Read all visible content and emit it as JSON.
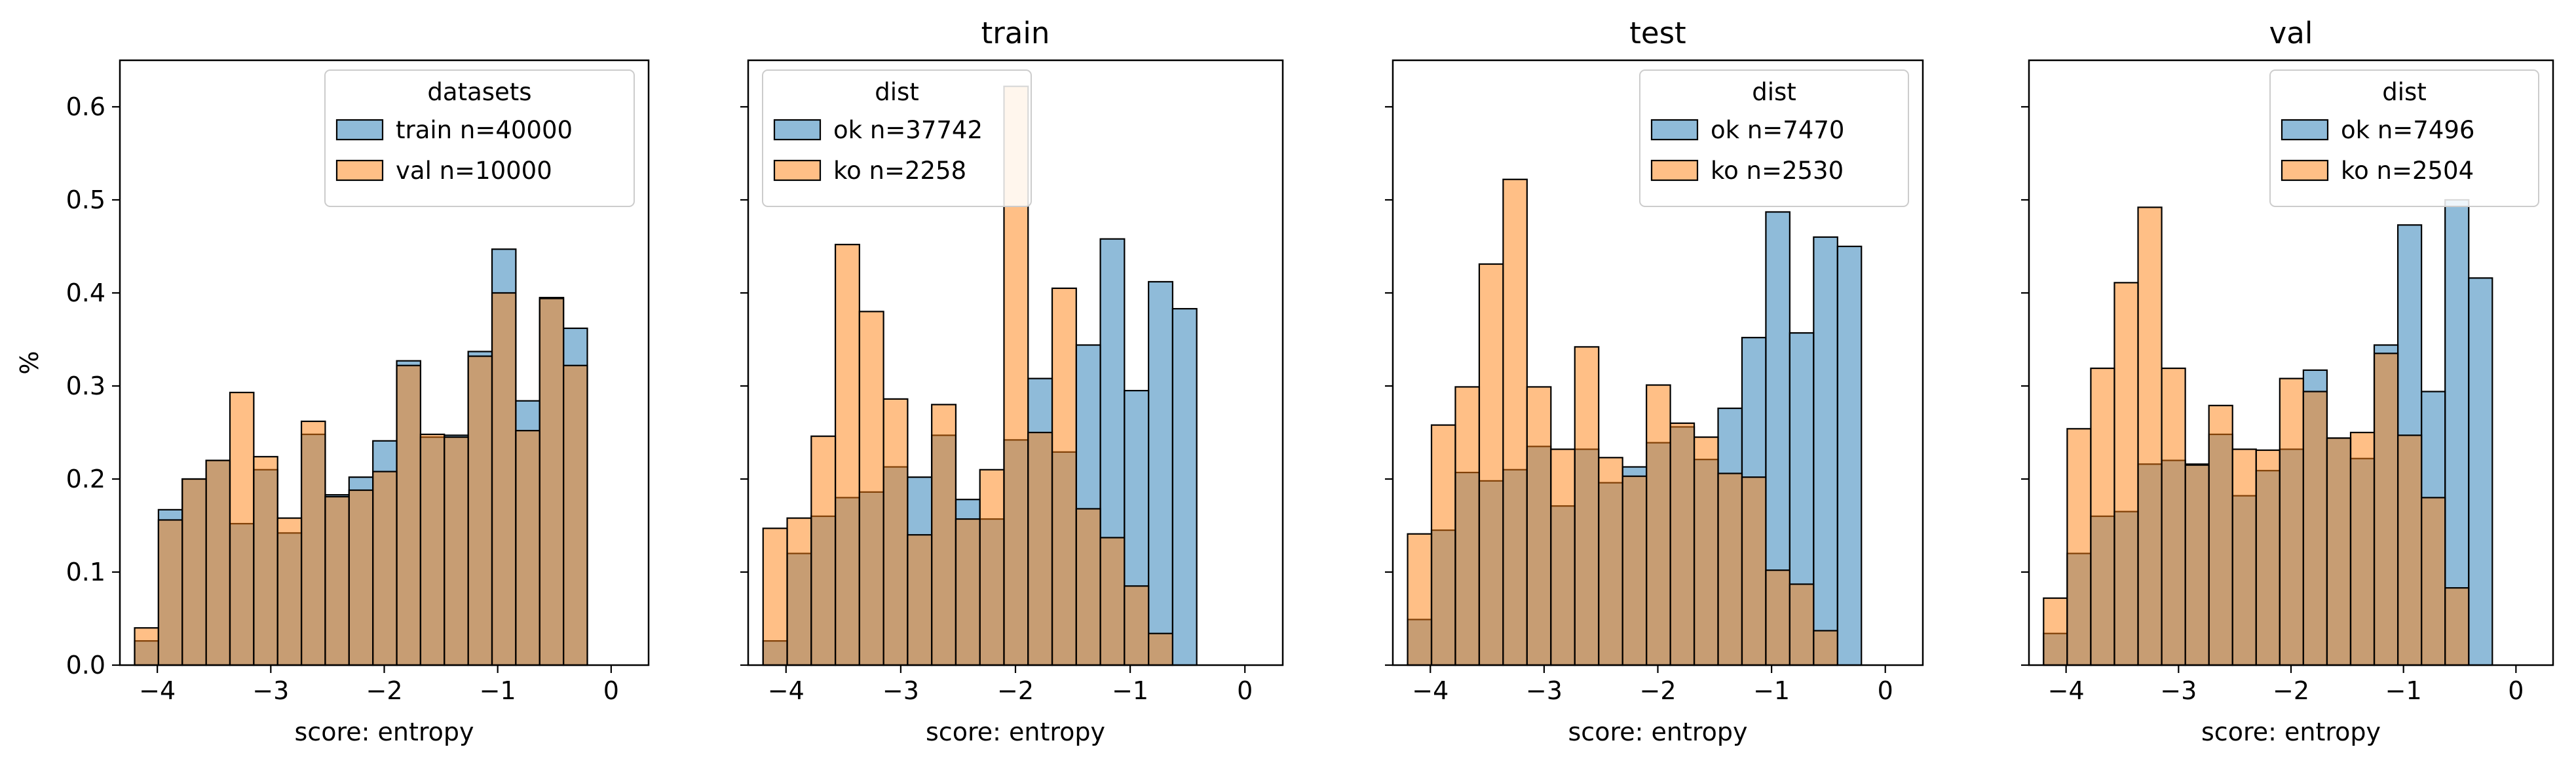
{
  "colors": {
    "blue": "#1f77b4",
    "orange": "#ff7f0e"
  },
  "chart_data": [
    {
      "type": "histogram",
      "title": "",
      "xlabel": "score: entropy",
      "ylabel": "%",
      "xlim": [
        -4.33,
        0.33
      ],
      "ylim": [
        0.0,
        0.65
      ],
      "xticks": [
        -4,
        -3,
        -2,
        -1,
        0
      ],
      "yticks": [
        "0.0",
        "0.1",
        "0.2",
        "0.3",
        "0.4",
        "0.5",
        "0.6"
      ],
      "legend_title": "datasets",
      "legend_position": "top-right",
      "series": [
        {
          "name": "train n=40000",
          "color": "blue",
          "bin_start": -4.2,
          "bin_width": 0.21,
          "values": [
            0.026,
            0.167,
            0.2,
            0.22,
            0.152,
            0.21,
            0.142,
            0.248,
            0.183,
            0.202,
            0.241,
            0.327,
            0.245,
            0.247,
            0.337,
            0.447,
            0.284,
            0.395,
            0.362
          ]
        },
        {
          "name": "val n=10000",
          "color": "orange",
          "bin_start": -4.2,
          "bin_width": 0.21,
          "values": [
            0.04,
            0.156,
            0.2,
            0.22,
            0.293,
            0.224,
            0.158,
            0.262,
            0.181,
            0.188,
            0.208,
            0.322,
            0.248,
            0.245,
            0.332,
            0.4,
            0.252,
            0.394,
            0.322
          ]
        }
      ]
    },
    {
      "type": "histogram",
      "title": "train",
      "xlabel": "score: entropy",
      "ylabel": "",
      "xlim": [
        -4.33,
        0.33
      ],
      "ylim": [
        0.0,
        0.65
      ],
      "xticks": [
        -4,
        -3,
        -2,
        -1,
        0
      ],
      "yticks": [],
      "legend_title": "dist",
      "legend_position": "top-left",
      "series": [
        {
          "name": "ok n=37742",
          "color": "blue",
          "bin_start": -4.2,
          "bin_width": 0.21,
          "values": [
            0.026,
            0.12,
            0.16,
            0.18,
            0.186,
            0.213,
            0.202,
            0.247,
            0.178,
            0.157,
            0.242,
            0.308,
            0.229,
            0.344,
            0.458,
            0.295,
            0.412,
            0.383,
            0.0
          ]
        },
        {
          "name": "ko n=2258",
          "color": "orange",
          "bin_start": -4.2,
          "bin_width": 0.21,
          "values": [
            0.147,
            0.158,
            0.246,
            0.452,
            0.38,
            0.286,
            0.14,
            0.28,
            0.157,
            0.21,
            0.622,
            0.25,
            0.405,
            0.168,
            0.137,
            0.085,
            0.034,
            0.0,
            0.0
          ]
        }
      ]
    },
    {
      "type": "histogram",
      "title": "test",
      "xlabel": "score: entropy",
      "ylabel": "",
      "xlim": [
        -4.33,
        0.33
      ],
      "ylim": [
        0.0,
        0.65
      ],
      "xticks": [
        -4,
        -3,
        -2,
        -1,
        0
      ],
      "yticks": [],
      "legend_title": "dist",
      "legend_position": "top-right",
      "series": [
        {
          "name": "ok n=7470",
          "color": "blue",
          "bin_start": -4.2,
          "bin_width": 0.21,
          "values": [
            0.049,
            0.145,
            0.207,
            0.198,
            0.21,
            0.235,
            0.171,
            0.232,
            0.196,
            0.213,
            0.239,
            0.256,
            0.221,
            0.276,
            0.352,
            0.487,
            0.357,
            0.46,
            0.45
          ]
        },
        {
          "name": "ko n=2530",
          "color": "orange",
          "bin_start": -4.2,
          "bin_width": 0.21,
          "values": [
            0.141,
            0.258,
            0.299,
            0.431,
            0.522,
            0.299,
            0.232,
            0.342,
            0.223,
            0.203,
            0.301,
            0.26,
            0.245,
            0.206,
            0.202,
            0.102,
            0.087,
            0.037,
            0.0
          ]
        }
      ]
    },
    {
      "type": "histogram",
      "title": "val",
      "xlabel": "score: entropy",
      "ylabel": "",
      "xlim": [
        -4.33,
        0.33
      ],
      "ylim": [
        0.0,
        0.65
      ],
      "xticks": [
        -4,
        -3,
        -2,
        -1,
        0
      ],
      "yticks": [],
      "legend_title": "dist",
      "legend_position": "top-right",
      "series": [
        {
          "name": "ok n=7496",
          "color": "blue",
          "bin_start": -4.2,
          "bin_width": 0.21,
          "values": [
            0.034,
            0.12,
            0.16,
            0.165,
            0.216,
            0.22,
            0.216,
            0.248,
            0.182,
            0.209,
            0.232,
            0.317,
            0.244,
            0.222,
            0.344,
            0.473,
            0.294,
            0.5,
            0.416
          ]
        },
        {
          "name": "ko n=2504",
          "color": "orange",
          "bin_start": -4.2,
          "bin_width": 0.21,
          "values": [
            0.072,
            0.254,
            0.319,
            0.411,
            0.492,
            0.319,
            0.215,
            0.279,
            0.232,
            0.231,
            0.308,
            0.294,
            0.244,
            0.25,
            0.335,
            0.247,
            0.18,
            0.083,
            0.0
          ]
        }
      ]
    }
  ]
}
